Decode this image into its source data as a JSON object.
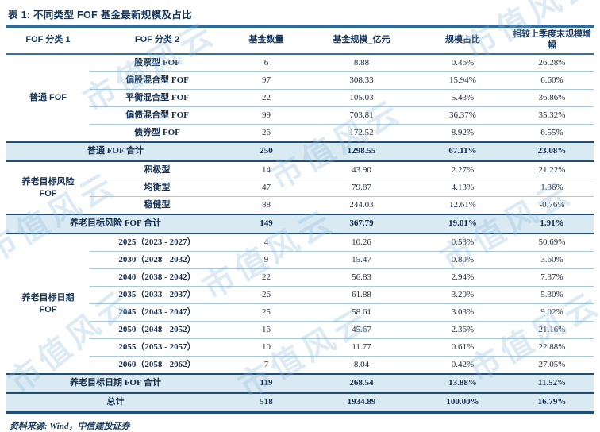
{
  "title": "表 1: 不同类型 FOF 基金最新规模及占比",
  "source": "资料来源: Wind，中信建投证券",
  "watermark": {
    "text": "市值风云"
  },
  "colors": {
    "accent_navy": "#1f4e79",
    "rule_blue": "#2d6ba3",
    "row_separator": "#a6c9dc",
    "highlight_bg": "#d9eaf3",
    "text": "#163253",
    "watermark": "#8fbcd9"
  },
  "table": {
    "headers": [
      "FOF 分类 1",
      "FOF 分类 2",
      "基金数量",
      "基金规模_亿元",
      "规模占比",
      "相较上季度末规模增幅"
    ],
    "sections": [
      {
        "group": "普通 FOF",
        "rows": [
          [
            "股票型 FOF",
            "6",
            "8.88",
            "0.46%",
            "26.28%"
          ],
          [
            "偏股混合型 FOF",
            "97",
            "308.33",
            "15.94%",
            "6.60%"
          ],
          [
            "平衡混合型 FOF",
            "22",
            "105.03",
            "5.43%",
            "36.86%"
          ],
          [
            "偏债混合型 FOF",
            "99",
            "703.81",
            "36.37%",
            "35.32%"
          ],
          [
            "债券型 FOF",
            "26",
            "172.52",
            "8.92%",
            "6.55%"
          ]
        ],
        "subtotal": [
          "普通 FOF 合计",
          "250",
          "1298.55",
          "67.11%",
          "23.08%"
        ]
      },
      {
        "group": "养老目标风险\nFOF",
        "rows": [
          [
            "积极型",
            "14",
            "43.90",
            "2.27%",
            "21.22%"
          ],
          [
            "均衡型",
            "47",
            "79.87",
            "4.13%",
            "1.36%"
          ],
          [
            "稳健型",
            "88",
            "244.03",
            "12.61%",
            "-0.76%"
          ]
        ],
        "subtotal": [
          "养老目标风险 FOF 合计",
          "149",
          "367.79",
          "19.01%",
          "1.91%"
        ]
      },
      {
        "group": "养老目标日期\nFOF",
        "rows": [
          [
            "2025（2023 - 2027）",
            "4",
            "10.26",
            "0.53%",
            "50.69%"
          ],
          [
            "2030（2028 - 2032）",
            "9",
            "15.47",
            "0.80%",
            "3.60%"
          ],
          [
            "2040（2038 - 2042）",
            "22",
            "56.83",
            "2.94%",
            "7.37%"
          ],
          [
            "2035（2033 - 2037）",
            "26",
            "61.88",
            "3.20%",
            "5.30%"
          ],
          [
            "2045（2043 - 2047）",
            "25",
            "58.61",
            "3.03%",
            "9.02%"
          ],
          [
            "2050（2048 - 2052）",
            "16",
            "45.67",
            "2.36%",
            "21.16%"
          ],
          [
            "2055（2053 - 2057）",
            "10",
            "11.77",
            "0.61%",
            "22.88%"
          ],
          [
            "2060（2058 - 2062）",
            "7",
            "8.04",
            "0.42%",
            "27.05%"
          ]
        ],
        "subtotal": [
          "养老目标日期 FOF 合计",
          "119",
          "268.54",
          "13.88%",
          "11.52%"
        ]
      }
    ],
    "total": [
      "总计",
      "518",
      "1934.89",
      "100.00%",
      "16.79%"
    ]
  }
}
